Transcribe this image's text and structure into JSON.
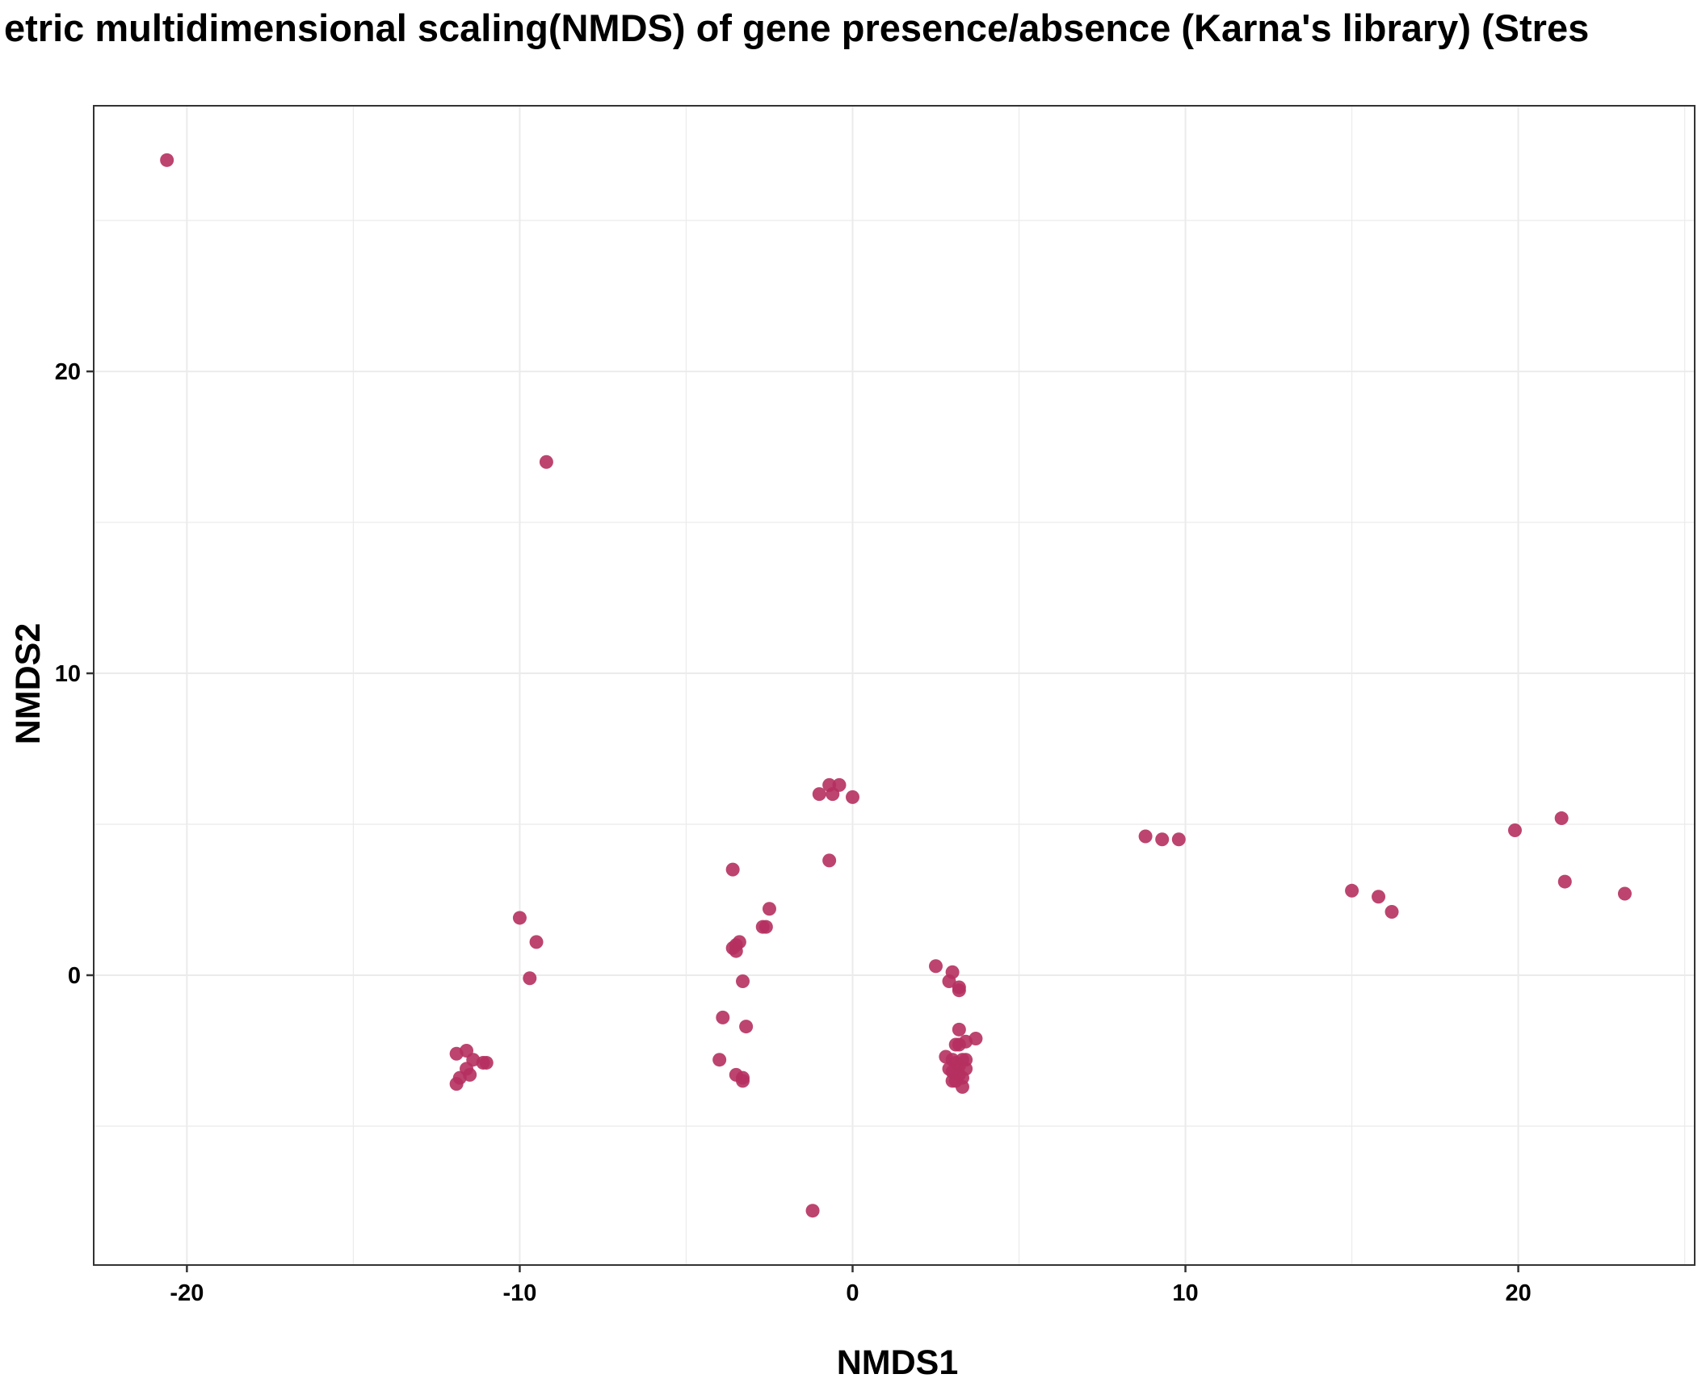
{
  "chart_data": {
    "type": "scatter",
    "title": "etric multidimensional scaling(NMDS) of gene presence/absence (Karna's library) (Stres",
    "xlabel": "NMDS1",
    "ylabel": "NMDS2",
    "xlim": [
      -22.8,
      25.3
    ],
    "ylim": [
      -9.6,
      28.8
    ],
    "x_ticks": [
      -20,
      -10,
      0,
      10,
      20
    ],
    "x_tick_labels": [
      "-20",
      "-10",
      "0",
      "10",
      "20"
    ],
    "y_ticks": [
      0,
      10,
      20
    ],
    "y_tick_labels": [
      "0",
      "10",
      "20"
    ],
    "x_minor_grid": [
      -15,
      -5,
      5,
      15,
      25
    ],
    "y_minor_grid": [
      -5,
      5,
      15,
      25
    ],
    "grid": true,
    "colors": {
      "point": "#B5305F",
      "grid": "#EBEBEB",
      "panel_border": "#333333"
    },
    "series": [
      {
        "points": [
          {
            "x": -20.6,
            "y": 27.0
          },
          {
            "x": -9.2,
            "y": 17.0
          },
          {
            "x": -10.0,
            "y": 1.9
          },
          {
            "x": -9.5,
            "y": 1.1
          },
          {
            "x": -9.7,
            "y": -0.1
          },
          {
            "x": -11.9,
            "y": -2.6
          },
          {
            "x": -11.6,
            "y": -2.5
          },
          {
            "x": -11.4,
            "y": -2.8
          },
          {
            "x": -11.1,
            "y": -2.9
          },
          {
            "x": -11.0,
            "y": -2.9
          },
          {
            "x": -11.6,
            "y": -3.1
          },
          {
            "x": -11.5,
            "y": -3.3
          },
          {
            "x": -11.8,
            "y": -3.4
          },
          {
            "x": -11.9,
            "y": -3.6
          },
          {
            "x": -3.6,
            "y": 3.5
          },
          {
            "x": -2.5,
            "y": 2.2
          },
          {
            "x": -2.7,
            "y": 1.6
          },
          {
            "x": -2.6,
            "y": 1.6
          },
          {
            "x": -3.4,
            "y": 1.1
          },
          {
            "x": -3.5,
            "y": 1.0
          },
          {
            "x": -3.6,
            "y": 0.9
          },
          {
            "x": -3.5,
            "y": 0.8
          },
          {
            "x": -3.3,
            "y": -0.2
          },
          {
            "x": -3.9,
            "y": -1.4
          },
          {
            "x": -3.2,
            "y": -1.7
          },
          {
            "x": -4.0,
            "y": -2.8
          },
          {
            "x": -3.5,
            "y": -3.3
          },
          {
            "x": -3.3,
            "y": -3.4
          },
          {
            "x": -3.3,
            "y": -3.5
          },
          {
            "x": -1.0,
            "y": 6.0
          },
          {
            "x": -0.7,
            "y": 6.3
          },
          {
            "x": -0.6,
            "y": 6.0
          },
          {
            "x": -0.4,
            "y": 6.3
          },
          {
            "x": 0.0,
            "y": 5.9
          },
          {
            "x": -0.7,
            "y": 3.8
          },
          {
            "x": -1.2,
            "y": -7.8
          },
          {
            "x": 2.5,
            "y": 0.3
          },
          {
            "x": 3.0,
            "y": 0.1
          },
          {
            "x": 2.9,
            "y": -0.2
          },
          {
            "x": 3.2,
            "y": -0.4
          },
          {
            "x": 3.2,
            "y": -0.5
          },
          {
            "x": 3.2,
            "y": -1.8
          },
          {
            "x": 3.7,
            "y": -2.1
          },
          {
            "x": 3.4,
            "y": -2.2
          },
          {
            "x": 3.2,
            "y": -2.3
          },
          {
            "x": 3.1,
            "y": -2.3
          },
          {
            "x": 2.8,
            "y": -2.7
          },
          {
            "x": 3.0,
            "y": -2.8
          },
          {
            "x": 3.3,
            "y": -2.8
          },
          {
            "x": 3.4,
            "y": -2.8
          },
          {
            "x": 3.1,
            "y": -2.9
          },
          {
            "x": 3.2,
            "y": -3.0
          },
          {
            "x": 2.9,
            "y": -3.1
          },
          {
            "x": 3.4,
            "y": -3.1
          },
          {
            "x": 3.0,
            "y": -3.2
          },
          {
            "x": 3.2,
            "y": -3.3
          },
          {
            "x": 3.3,
            "y": -3.4
          },
          {
            "x": 3.1,
            "y": -3.5
          },
          {
            "x": 3.0,
            "y": -3.5
          },
          {
            "x": 3.3,
            "y": -3.7
          },
          {
            "x": 8.8,
            "y": 4.6
          },
          {
            "x": 9.3,
            "y": 4.5
          },
          {
            "x": 9.8,
            "y": 4.5
          },
          {
            "x": 15.0,
            "y": 2.8
          },
          {
            "x": 15.8,
            "y": 2.6
          },
          {
            "x": 16.2,
            "y": 2.1
          },
          {
            "x": 19.9,
            "y": 4.8
          },
          {
            "x": 21.3,
            "y": 5.2
          },
          {
            "x": 21.4,
            "y": 3.1
          },
          {
            "x": 23.2,
            "y": 2.7
          }
        ]
      }
    ]
  }
}
